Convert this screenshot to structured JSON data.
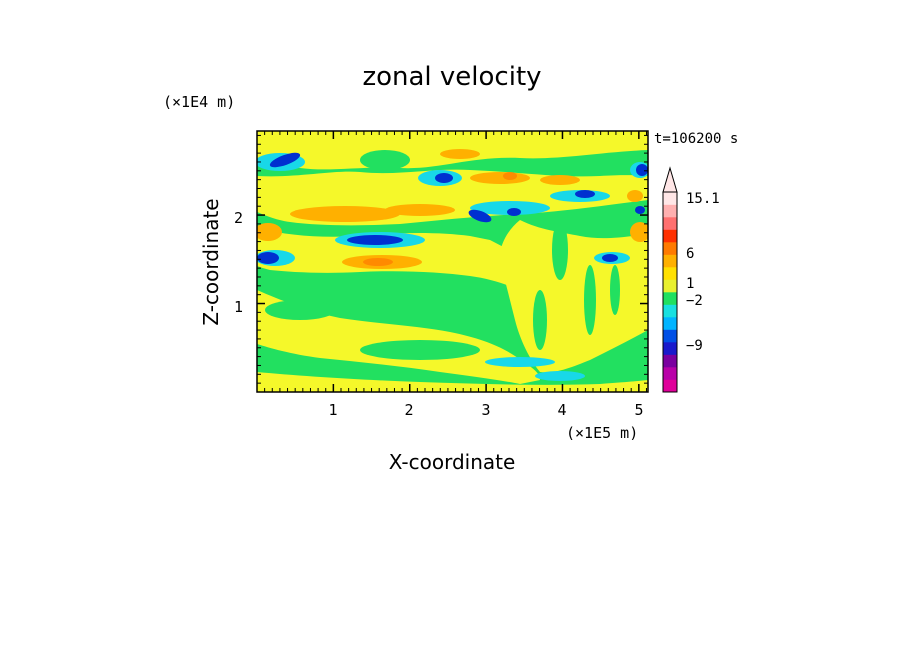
{
  "chart_data": {
    "type": "heatmap",
    "title": "zonal velocity",
    "xlabel": "X-coordinate",
    "ylabel": "Z-coordinate",
    "x_scale_label": "(×1E5 m)",
    "y_scale_label": "(×1E4 m)",
    "time_label": "t=106200 s",
    "xlim": [
      0,
      5.12
    ],
    "ylim": [
      0,
      2.95
    ],
    "x_ticks": [
      "1",
      "2",
      "3",
      "4",
      "5"
    ],
    "y_ticks": [
      "1",
      "2"
    ],
    "colorbar": {
      "labels": [
        "15.1",
        "6",
        "1",
        "−2",
        "−9"
      ],
      "colors": [
        "#e0009a",
        "#b800a8",
        "#7a00a0",
        "#1a1acc",
        "#0050e6",
        "#00b4ff",
        "#18e0e0",
        "#20e060",
        "#e8f030",
        "#ffe000",
        "#ffb000",
        "#ff7a00",
        "#ff3000",
        "#ff7070",
        "#ffb0b0",
        "#ffe6e6"
      ]
    },
    "palette": {
      "green": "#22e060",
      "yellow": "#f5f82a",
      "orange": "#ffb000",
      "dark_orange": "#ff8a00",
      "cyan": "#18d8e8",
      "blue": "#0030d0"
    }
  }
}
